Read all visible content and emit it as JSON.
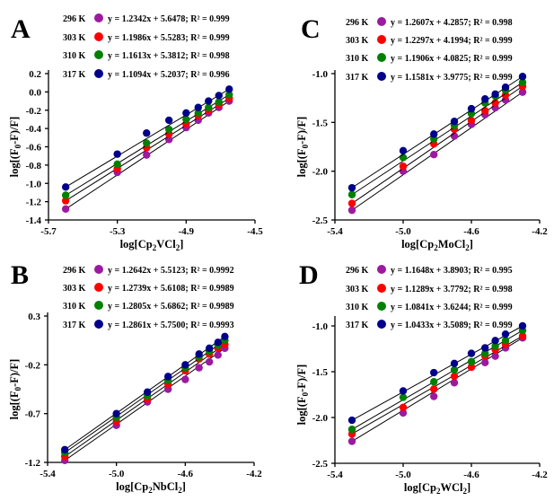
{
  "chart_data": [
    {
      "type": "scatter",
      "panel": "A",
      "xlabel": "log[Cp2VCl2]",
      "xlabel_parts": {
        "pre": "log[Cp",
        "sub1": "2",
        "mid": "VCl",
        "sub2": "2",
        "post": "]"
      },
      "ylabel": "log[(F0-F)/F]",
      "xlim": [
        -5.7,
        -4.5
      ],
      "ylim": [
        -1.4,
        0.2
      ],
      "xticks": [
        -5.7,
        -5.3,
        -4.9,
        -4.5
      ],
      "xtick_labels": [
        "-5.7",
        "-5.3",
        "-4.9",
        "-4.5"
      ],
      "yticks": [
        -1.4,
        -1.2,
        -1.0,
        -0.8,
        -0.6,
        -0.4,
        -0.2,
        0.0,
        0.2
      ],
      "ytick_labels": [
        "-1.4",
        "-1.2",
        "-1.0",
        "-0.8",
        "-0.6",
        "-0.4",
        "-0.2",
        "0.0",
        "0.2"
      ],
      "x": [
        -5.6,
        -5.3,
        -5.13,
        -5.0,
        -4.9,
        -4.83,
        -4.77,
        -4.71,
        -4.65
      ],
      "series": [
        {
          "name": "296 K",
          "color": "#9b1aa0",
          "equation": "y = 1.2342x + 5.6478; R² = 0.999",
          "slope": 1.2342,
          "intercept": 5.6478,
          "values": [
            -1.28,
            -0.88,
            -0.69,
            -0.52,
            -0.39,
            -0.31,
            -0.23,
            -0.17,
            -0.1
          ]
        },
        {
          "name": "303 K",
          "color": "#ff0000",
          "equation": "y = 1.1986x + 5.5283; R² = 0.999",
          "slope": 1.1986,
          "intercept": 5.5283,
          "values": [
            -1.19,
            -0.84,
            -0.61,
            -0.46,
            -0.35,
            -0.26,
            -0.2,
            -0.14,
            -0.07
          ]
        },
        {
          "name": "310 K",
          "color": "#008000",
          "equation": "y = 1.1613x + 5.3812; R² = 0.998",
          "slope": 1.1613,
          "intercept": 5.3812,
          "values": [
            -1.13,
            -0.79,
            -0.56,
            -0.41,
            -0.3,
            -0.23,
            -0.17,
            -0.11,
            -0.03
          ]
        },
        {
          "name": "317 K",
          "color": "#00008b",
          "equation": "y = 1.1094x + 5.2037; R² = 0.996",
          "slope": 1.1094,
          "intercept": 5.2037,
          "values": [
            -1.04,
            -0.68,
            -0.45,
            -0.31,
            -0.23,
            -0.17,
            -0.1,
            -0.04,
            0.03
          ]
        }
      ]
    },
    {
      "type": "scatter",
      "panel": "C",
      "xlabel": "log[Cp2MoCl2]",
      "xlabel_parts": {
        "pre": "log[Cp",
        "sub1": "2",
        "mid": "MoCl",
        "sub2": "2",
        "post": "]"
      },
      "ylabel": "log[(F0-F)/F]",
      "xlim": [
        -5.4,
        -4.2
      ],
      "ylim": [
        -2.5,
        -1.0
      ],
      "xticks": [
        -5.4,
        -5.0,
        -4.6,
        -4.2
      ],
      "xtick_labels": [
        "-5.4",
        "-5.0",
        "-4.6",
        "-4.2"
      ],
      "yticks": [
        -2.5,
        -2.0,
        -1.5,
        -1.0
      ],
      "ytick_labels": [
        "-2.5",
        "-2.0",
        "-1.5",
        "-1.0"
      ],
      "x": [
        -5.3,
        -5.0,
        -4.82,
        -4.7,
        -4.6,
        -4.52,
        -4.46,
        -4.4,
        -4.3
      ],
      "series": [
        {
          "name": "296 K",
          "color": "#9b1aa0",
          "equation": "y = 1.2607x + 4.2857; R² = 0.998",
          "slope": 1.2607,
          "intercept": 4.2857,
          "values": [
            -2.4,
            -2.0,
            -1.83,
            -1.64,
            -1.52,
            -1.42,
            -1.35,
            -1.27,
            -1.19
          ]
        },
        {
          "name": "303 K",
          "color": "#ff0000",
          "equation": "y = 1.2297x + 4.1994; R² = 0.999",
          "slope": 1.2297,
          "intercept": 4.1994,
          "values": [
            -2.33,
            -1.95,
            -1.72,
            -1.57,
            -1.48,
            -1.38,
            -1.3,
            -1.22,
            -1.13
          ]
        },
        {
          "name": "310 K",
          "color": "#008000",
          "equation": "y = 1.1906x + 4.0825; R² = 0.999",
          "slope": 1.1906,
          "intercept": 4.0825,
          "values": [
            -2.24,
            -1.86,
            -1.67,
            -1.53,
            -1.41,
            -1.3,
            -1.23,
            -1.17,
            -1.09
          ]
        },
        {
          "name": "317 K",
          "color": "#00008b",
          "equation": "y = 1.1581x + 3.9775; R² = 0.999",
          "slope": 1.1581,
          "intercept": 3.9775,
          "values": [
            -2.17,
            -1.79,
            -1.62,
            -1.49,
            -1.36,
            -1.26,
            -1.21,
            -1.14,
            -1.03
          ]
        }
      ]
    },
    {
      "type": "scatter",
      "panel": "B",
      "xlabel": "log[Cp2NbCl2]",
      "xlabel_parts": {
        "pre": "log[Cp",
        "sub1": "2",
        "mid": "NbCl",
        "sub2": "2",
        "post": "]"
      },
      "ylabel": "log[(F0-F)/F]",
      "xlim": [
        -5.4,
        -4.2
      ],
      "ylim": [
        -1.2,
        0.3
      ],
      "xticks": [
        -5.4,
        -5.0,
        -4.6,
        -4.2
      ],
      "xtick_labels": [
        "-5.4",
        "-5.0",
        "-4.6",
        "-4.2"
      ],
      "yticks": [
        -1.2,
        -0.7,
        -0.2,
        0.3
      ],
      "ytick_labels": [
        "-1.2",
        "-0.7",
        "-0.2",
        "0.3"
      ],
      "x": [
        -5.3,
        -5.0,
        -4.82,
        -4.7,
        -4.6,
        -4.52,
        -4.46,
        -4.41,
        -4.37
      ],
      "series": [
        {
          "name": "296 K",
          "color": "#9b1aa0",
          "equation": "y = 1.2642x + 5.5123; R² = 0.9992",
          "slope": 1.2642,
          "intercept": 5.5123,
          "values": [
            -1.18,
            -0.82,
            -0.58,
            -0.45,
            -0.35,
            -0.23,
            -0.17,
            -0.1,
            -0.03
          ]
        },
        {
          "name": "303 K",
          "color": "#ff0000",
          "equation": "y = 1.2739x + 5.6108; R² = 0.9989",
          "slope": 1.2739,
          "intercept": 5.6108,
          "values": [
            -1.14,
            -0.78,
            -0.55,
            -0.4,
            -0.26,
            -0.14,
            -0.09,
            -0.03,
            0.01
          ]
        },
        {
          "name": "310 K",
          "color": "#008000",
          "equation": "y = 1.2805x + 5.6862; R² = 0.9989",
          "slope": 1.2805,
          "intercept": 5.6862,
          "values": [
            -1.1,
            -0.74,
            -0.52,
            -0.36,
            -0.23,
            -0.12,
            -0.06,
            0.0,
            0.05
          ]
        },
        {
          "name": "317 K",
          "color": "#00008b",
          "equation": "y = 1.2861x + 5.7500; R² = 0.9993",
          "slope": 1.2861,
          "intercept": 5.75,
          "values": [
            -1.07,
            -0.7,
            -0.48,
            -0.32,
            -0.2,
            -0.09,
            -0.03,
            0.03,
            0.09
          ]
        }
      ]
    },
    {
      "type": "scatter",
      "panel": "D",
      "xlabel": "log[Cp2WCl2]",
      "xlabel_parts": {
        "pre": "log[Cp",
        "sub1": "2",
        "mid": "WCl",
        "sub2": "2",
        "post": "]"
      },
      "ylabel": "log[(F0-F)/F]",
      "xlim": [
        -5.4,
        -4.2
      ],
      "ylim": [
        -2.5,
        -1.0
      ],
      "xticks": [
        -5.4,
        -5.0,
        -4.6,
        -4.2
      ],
      "xtick_labels": [
        "-5.4",
        "-5.0",
        "-4.6",
        "-4.2"
      ],
      "yticks": [
        -2.5,
        -2.0,
        -1.5,
        -1.0
      ],
      "ytick_labels": [
        "-2.5",
        "-2.0",
        "-1.5",
        "-1.0"
      ],
      "x": [
        -5.3,
        -5.0,
        -4.82,
        -4.7,
        -4.6,
        -4.52,
        -4.46,
        -4.4,
        -4.3
      ],
      "series": [
        {
          "name": "296 K",
          "color": "#9b1aa0",
          "equation": "y = 1.1648x + 3.8903; R² = 0.995",
          "slope": 1.1648,
          "intercept": 3.8903,
          "values": [
            -2.26,
            -1.95,
            -1.77,
            -1.62,
            -1.45,
            -1.4,
            -1.33,
            -1.24,
            -1.13
          ]
        },
        {
          "name": "303 K",
          "color": "#ff0000",
          "equation": "y = 1.1289x + 3.7792; R² = 0.998",
          "slope": 1.1289,
          "intercept": 3.7792,
          "values": [
            -2.18,
            -1.89,
            -1.69,
            -1.55,
            -1.45,
            -1.33,
            -1.26,
            -1.2,
            -1.11
          ]
        },
        {
          "name": "310 K",
          "color": "#008000",
          "equation": "y = 1.0841x + 3.6244; R² = 0.999",
          "slope": 1.0841,
          "intercept": 3.6244,
          "values": [
            -2.13,
            -1.78,
            -1.61,
            -1.48,
            -1.39,
            -1.3,
            -1.22,
            -1.16,
            -1.05
          ]
        },
        {
          "name": "317 K",
          "color": "#00008b",
          "equation": "y = 1.0433x + 3.5089; R² = 0.999",
          "slope": 1.0433,
          "intercept": 3.5089,
          "values": [
            -2.03,
            -1.71,
            -1.51,
            -1.41,
            -1.3,
            -1.24,
            -1.16,
            -1.09,
            -1.0
          ]
        }
      ]
    }
  ]
}
